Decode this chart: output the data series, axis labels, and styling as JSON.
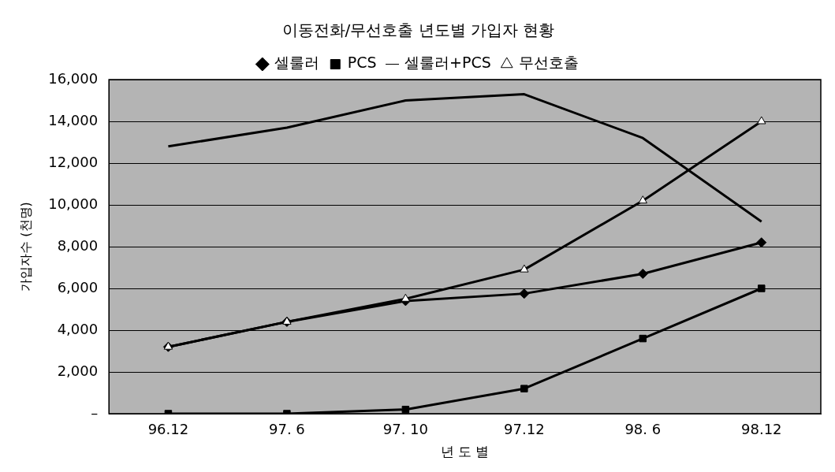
{
  "chart_data": {
    "type": "line",
    "title": "이동전화/무선호출 년도별 가입자 현황",
    "xlabel": "년 도 별",
    "ylabel": "가입자수 (천명)",
    "categories": [
      "96.12",
      "97. 6",
      "97. 10",
      "97.12",
      "98. 6",
      "98.12"
    ],
    "series": [
      {
        "name": "셀룰러",
        "color": "#000000",
        "marker": "diamond",
        "values": [
          3200,
          4400,
          5400,
          5750,
          6700,
          8200
        ]
      },
      {
        "name": "PCS",
        "color": "#000000",
        "marker": "square",
        "values": [
          0,
          0,
          200,
          1200,
          3600,
          6000
        ]
      },
      {
        "name": "셀룰러+PCS",
        "color": "#000000",
        "marker": "none",
        "values": [
          12800,
          13700,
          15000,
          15300,
          13200,
          9200
        ]
      },
      {
        "name": "무선호출",
        "color": "#000000",
        "marker": "triangle",
        "values": [
          3200,
          4400,
          5500,
          6900,
          10200,
          14000
        ]
      }
    ],
    "ylim": [
      0,
      16000
    ],
    "yticks": [
      {
        "value": 0,
        "label": "–"
      },
      {
        "value": 2000,
        "label": "2,000"
      },
      {
        "value": 4000,
        "label": "4,000"
      },
      {
        "value": 6000,
        "label": "6,000"
      },
      {
        "value": 8000,
        "label": "8,000"
      },
      {
        "value": 10000,
        "label": "10,000"
      },
      {
        "value": 12000,
        "label": "12,000"
      },
      {
        "value": 14000,
        "label": "14,000"
      },
      {
        "value": 16000,
        "label": "16,000"
      }
    ],
    "grid": "y",
    "legend": "top"
  }
}
